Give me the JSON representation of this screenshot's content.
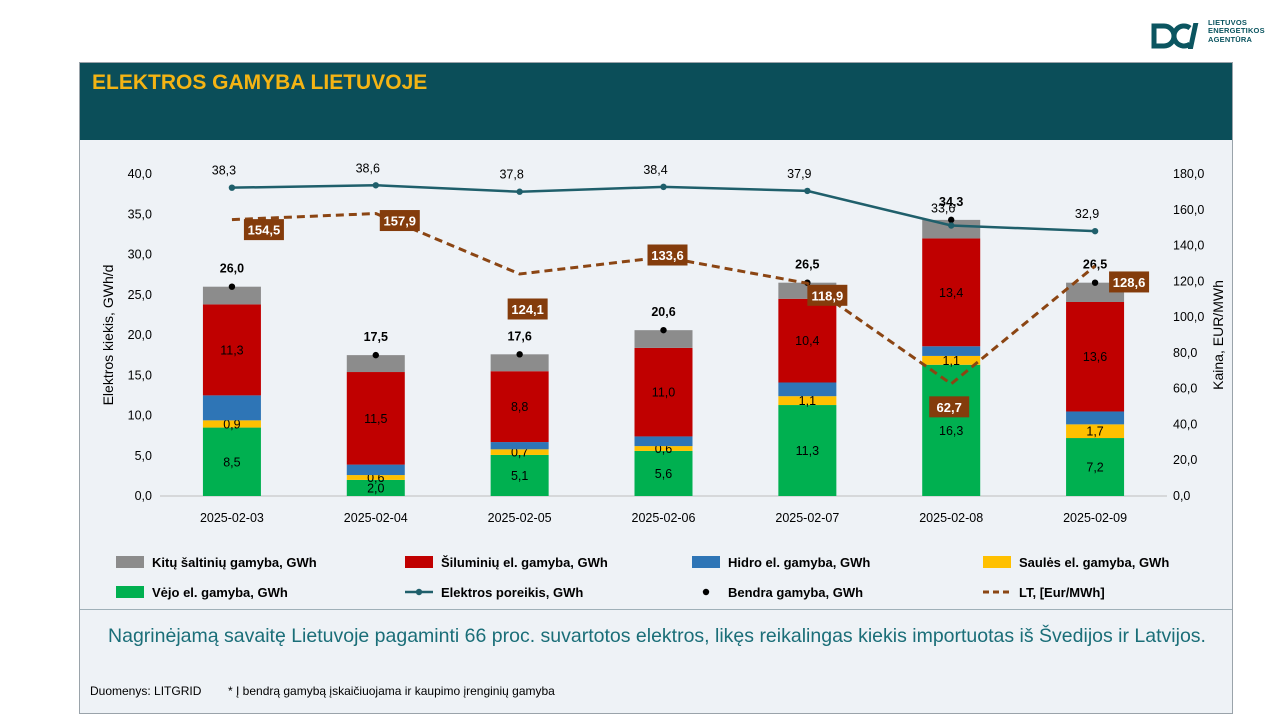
{
  "header": {
    "title": "ELEKTROS GAMYBA LIETUVOJE",
    "logo_lines": [
      "LIETUVOS",
      "ENERGETIKOS",
      "AGENTŪRA"
    ]
  },
  "colors": {
    "header_bg": "#0b4e59",
    "title": "#f4b414",
    "other": "#8c8c8c",
    "thermal": "#c00000",
    "hydro": "#2e75b6",
    "solar": "#ffc000",
    "wind": "#00b050",
    "demand": "#1f5f6b",
    "total": "#000000",
    "price": "#8b4513",
    "price_label_bg": "#843c0c",
    "summary_text": "#1a6e78"
  },
  "chart_data": {
    "type": "bar",
    "stacked": true,
    "categories": [
      "2025-02-03",
      "2025-02-04",
      "2025-02-05",
      "2025-02-06",
      "2025-02-07",
      "2025-02-08",
      "2025-02-09"
    ],
    "series": [
      {
        "key": "wind",
        "name": "Vėjo el. gamyba, GWh",
        "values": [
          8.5,
          2.0,
          5.1,
          5.6,
          11.3,
          16.3,
          7.2
        ],
        "labels": [
          "8,5",
          "2,0",
          "5,1",
          "5,6",
          "11,3",
          "16,3",
          "7,2"
        ]
      },
      {
        "key": "solar",
        "name": "Saulės el. gamyba, GWh",
        "values": [
          0.9,
          0.6,
          0.7,
          0.6,
          1.1,
          1.1,
          1.7
        ],
        "labels": [
          "0,9",
          "0,6",
          "0,7",
          "0,6",
          "1,1",
          "1,1",
          "1,7"
        ]
      },
      {
        "key": "hydro",
        "name": "Hidro el. gamyba, GWh",
        "values": [
          3.1,
          1.3,
          0.9,
          1.2,
          1.7,
          1.2,
          1.6
        ],
        "labels": [
          "",
          "",
          "",
          "",
          "",
          "",
          ""
        ]
      },
      {
        "key": "thermal",
        "name": "Šiluminių el. gamyba, GWh",
        "values": [
          11.3,
          11.5,
          8.8,
          11.0,
          10.4,
          13.4,
          13.6
        ],
        "labels": [
          "11,3",
          "11,5",
          "8,8",
          "11,0",
          "10,4",
          "13,4",
          "13,6"
        ]
      },
      {
        "key": "other",
        "name": "Kitų šaltinių gamyba,  GWh",
        "values": [
          2.2,
          2.1,
          2.1,
          2.2,
          2.0,
          2.3,
          2.4
        ],
        "labels": [
          "",
          "",
          "",
          "",
          "",
          "",
          ""
        ]
      }
    ],
    "total": {
      "name": "Bendra gamyba, GWh",
      "values": [
        26.0,
        17.5,
        17.6,
        20.6,
        26.5,
        34.3,
        26.5
      ],
      "labels": [
        "26,0",
        "17,5",
        "17,6",
        "20,6",
        "26,5",
        "34,3",
        "26,5"
      ]
    },
    "demand": {
      "name": "Elektros poreikis, GWh",
      "values": [
        38.3,
        38.6,
        37.8,
        38.4,
        37.9,
        33.6,
        32.9
      ],
      "labels": [
        "38,3",
        "38,6",
        "37,8",
        "38,4",
        "37,9",
        "33,6",
        "32,9"
      ]
    },
    "price": {
      "name": "LT, [Eur/MWh]",
      "values": [
        154.5,
        157.9,
        124.1,
        133.6,
        118.9,
        62.7,
        128.6
      ],
      "labels": [
        "154,5",
        "157,9",
        "124,1",
        "133,6",
        "118,9",
        "62,7",
        "128,6"
      ]
    },
    "ylabel": "Elektros kiekis, GWh/d",
    "y2label": "Kaina, EUR/MWh",
    "ylim": [
      0,
      40
    ],
    "y2lim": [
      0,
      180
    ],
    "yticks": [
      "0,0",
      "5,0",
      "10,0",
      "15,0",
      "20,0",
      "25,0",
      "30,0",
      "35,0",
      "40,0"
    ],
    "y2ticks": [
      "0,0",
      "20,0",
      "40,0",
      "60,0",
      "80,0",
      "100,0",
      "120,0",
      "140,0",
      "160,0",
      "180,0"
    ],
    "legend": {
      "placement": "bottom",
      "rows": [
        [
          {
            "kind": "box",
            "color_key": "other",
            "label": "Kitų šaltinių gamyba,  GWh"
          },
          {
            "kind": "box",
            "color_key": "thermal",
            "label": "Šiluminių el. gamyba, GWh"
          },
          {
            "kind": "box",
            "color_key": "hydro",
            "label": "Hidro el. gamyba, GWh"
          },
          {
            "kind": "box",
            "color_key": "solar",
            "label": "Saulės el. gamyba, GWh"
          }
        ],
        [
          {
            "kind": "box",
            "color_key": "wind",
            "label": "Vėjo el. gamyba, GWh"
          },
          {
            "kind": "line",
            "color_key": "demand",
            "label": "Elektros poreikis, GWh"
          },
          {
            "kind": "dot",
            "color_key": "total",
            "label": "Bendra gamyba, GWh"
          },
          {
            "kind": "dash",
            "color_key": "price",
            "label": "LT, [Eur/MWh]"
          }
        ]
      ]
    }
  },
  "summary": "Nagrinėjamą savaitę Lietuvoje pagaminti 66 proc. suvartotos elektros, likęs reikalingas kiekis importuotas iš Švedijos ir Latvijos.",
  "footer": {
    "source": "Duomenys: LITGRID",
    "note": "* Į bendrą gamybą įskaičiuojama ir kaupimo įrenginių gamyba"
  }
}
